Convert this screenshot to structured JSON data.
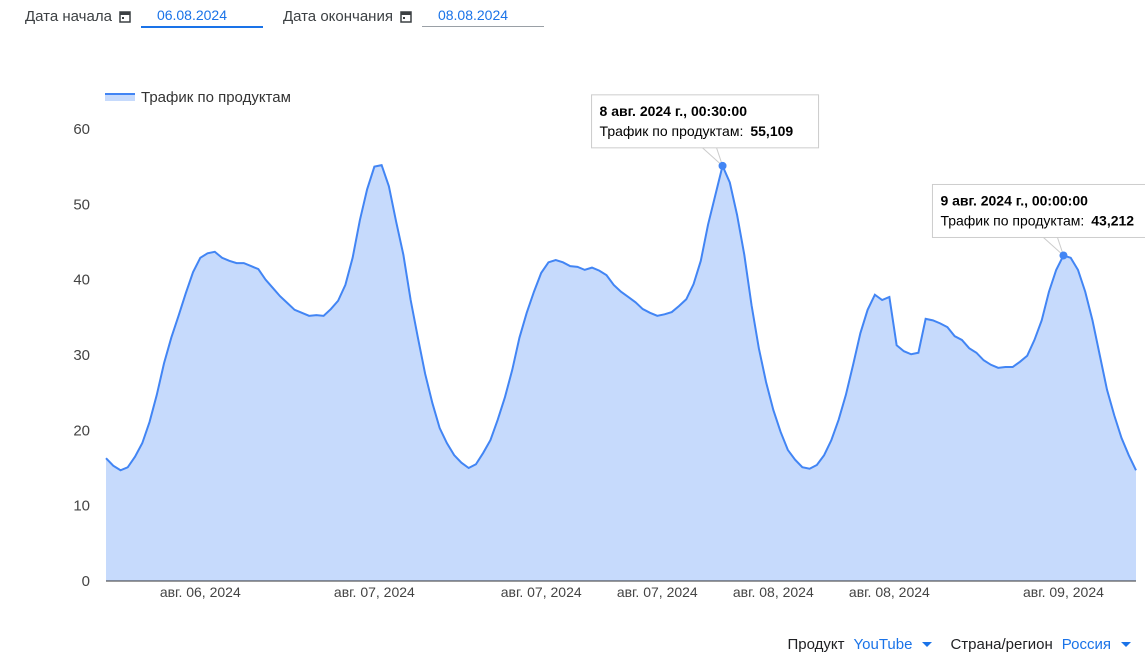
{
  "filters": {
    "start_label": "Дата начала",
    "start_value": "06.08.2024",
    "end_label": "Дата окончания",
    "end_value": "08.08.2024"
  },
  "chart_data": {
    "type": "area",
    "categories": [
      null,
      null,
      null,
      null,
      null,
      null,
      null,
      null,
      null,
      null,
      null,
      null,
      null,
      "авг. 06, 2024",
      null,
      null,
      null,
      null,
      null,
      null,
      null,
      null,
      null,
      null,
      null,
      null,
      null,
      null,
      null,
      null,
      null,
      null,
      null,
      null,
      null,
      null,
      null,
      "авг. 07, 2024",
      null,
      null,
      null,
      null,
      null,
      null,
      null,
      null,
      null,
      null,
      null,
      null,
      null,
      null,
      null,
      null,
      null,
      null,
      null,
      null,
      null,
      null,
      "авг. 07, 2024",
      null,
      null,
      null,
      null,
      null,
      null,
      null,
      null,
      null,
      null,
      null,
      null,
      null,
      null,
      null,
      "авг. 07, 2024",
      null,
      null,
      null,
      null,
      null,
      null,
      null,
      null,
      null,
      null,
      null,
      null,
      null,
      null,
      null,
      "авг. 08, 2024",
      null,
      null,
      null,
      null,
      null,
      null,
      null,
      null,
      null,
      null,
      null,
      null,
      null,
      null,
      null,
      "авг. 08, 2024",
      null,
      null,
      null,
      null,
      null,
      null,
      null,
      null,
      null,
      null,
      null,
      null,
      null,
      null,
      null,
      null,
      null,
      null,
      null,
      null,
      null,
      null,
      null,
      "авг. 09, 2024",
      null,
      null,
      null,
      null,
      null,
      null,
      null,
      null,
      null,
      null
    ],
    "series": [
      {
        "name": "Трафик по продуктам",
        "color": "#4285f4",
        "fill": "#c6dafc",
        "values": [
          16.3,
          15.3,
          14.7,
          15.1,
          16.5,
          18.3,
          21.1,
          24.7,
          28.9,
          32.3,
          35.2,
          38.2,
          41.0,
          42.9,
          43.5,
          43.7,
          42.9,
          42.5,
          42.2,
          42.2,
          41.8,
          41.4,
          40.0,
          38.9,
          37.8,
          36.9,
          36.0,
          35.6,
          35.2,
          35.3,
          35.2,
          36.1,
          37.2,
          39.3,
          42.9,
          47.9,
          52.0,
          55.0,
          55.2,
          52.4,
          47.7,
          43.3,
          37.3,
          32.3,
          27.5,
          23.6,
          20.3,
          18.3,
          16.7,
          15.7,
          15.0,
          15.5,
          17.0,
          18.7,
          21.4,
          24.4,
          28.0,
          32.3,
          35.6,
          38.4,
          40.9,
          42.3,
          42.6,
          42.3,
          41.8,
          41.7,
          41.3,
          41.6,
          41.2,
          40.6,
          39.3,
          38.4,
          37.7,
          37.0,
          36.1,
          35.6,
          35.2,
          35.4,
          35.7,
          36.5,
          37.4,
          39.4,
          42.5,
          47.3,
          51.2,
          55.109,
          52.9,
          48.6,
          43.3,
          36.6,
          30.9,
          26.4,
          22.7,
          19.8,
          17.4,
          16.1,
          15.1,
          14.9,
          15.4,
          16.7,
          18.7,
          21.4,
          24.7,
          28.7,
          32.9,
          36.0,
          38.0,
          37.3,
          37.7,
          31.3,
          30.5,
          30.1,
          30.3,
          34.8,
          34.6,
          34.2,
          33.7,
          32.5,
          32.0,
          30.9,
          30.3,
          29.3,
          28.7,
          28.3,
          28.4,
          28.4,
          29.1,
          29.9,
          32.0,
          34.6,
          38.4,
          41.3,
          43.212,
          42.9,
          41.3,
          38.4,
          34.6,
          30.0,
          25.4,
          22.0,
          19.0,
          16.7,
          14.7
        ]
      }
    ],
    "ylim": [
      0,
      60
    ],
    "yticks": [
      0,
      10,
      20,
      30,
      40,
      50,
      60
    ],
    "legend": "top-left",
    "annotations": [
      {
        "title": "8 авг. 2024 г., 00:30:00",
        "series_label": "Трафик по продуктам:",
        "value": 55.109,
        "label": "55,109"
      },
      {
        "title": "9 авг. 2024 г., 00:00:00",
        "series_label": "Трафик по продуктам:",
        "value": 43.212,
        "label": "43,212"
      }
    ]
  },
  "footer": {
    "product_label": "Продукт",
    "product_value": "YouTube",
    "region_label": "Страна/регион",
    "region_value": "Россия"
  }
}
